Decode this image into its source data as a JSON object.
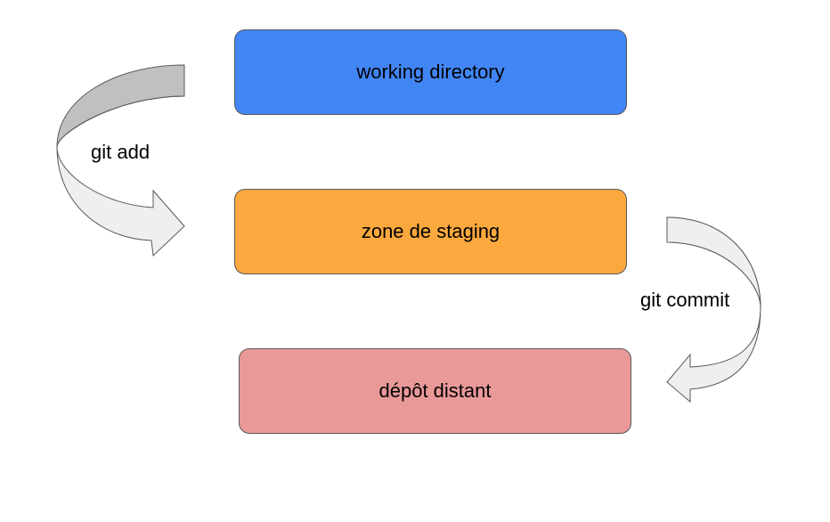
{
  "boxes": {
    "working": {
      "label": "working directory",
      "color": "#4285f4"
    },
    "staging": {
      "label": "zone de staging",
      "color": "#fba83e"
    },
    "depot": {
      "label": "dépôt distant",
      "color": "#ea9999"
    }
  },
  "arrows": {
    "add": {
      "label": "git add"
    },
    "commit": {
      "label": "git commit"
    }
  },
  "arrow_colors": {
    "back_face": "#c0c0c0",
    "front_face": "#efefef",
    "stroke": "#595959"
  }
}
